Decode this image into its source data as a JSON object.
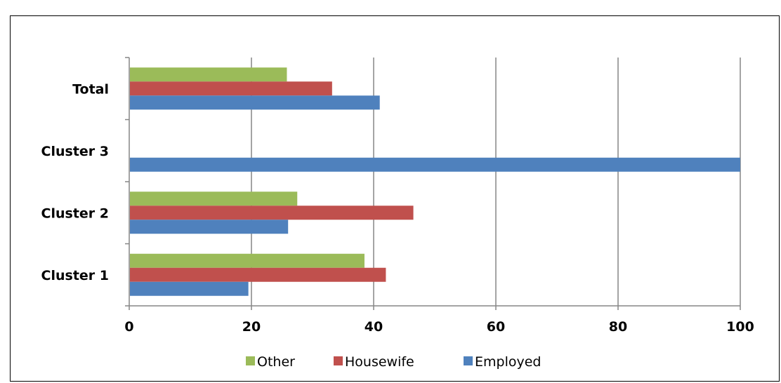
{
  "chart_data": {
    "type": "bar",
    "orientation": "horizontal",
    "categories": [
      "Cluster 1",
      "Cluster 2",
      "Cluster 3",
      "Total"
    ],
    "series": [
      {
        "name": "Employed",
        "color": "#4f81bd",
        "values": [
          19.5,
          26,
          100,
          41
        ]
      },
      {
        "name": "Housewife",
        "color": "#c0504d",
        "values": [
          42,
          46.5,
          0,
          33.2
        ]
      },
      {
        "name": "Other",
        "color": "#9bbb59",
        "values": [
          38.5,
          27.5,
          0,
          25.8
        ]
      }
    ],
    "x_ticks": [
      0,
      20,
      40,
      60,
      80,
      100
    ],
    "xlim": [
      0,
      100
    ],
    "grid": true,
    "legend_position": "bottom",
    "legend_order": [
      "Other",
      "Housewife",
      "Employed"
    ],
    "title": "",
    "xlabel": "",
    "ylabel": ""
  }
}
